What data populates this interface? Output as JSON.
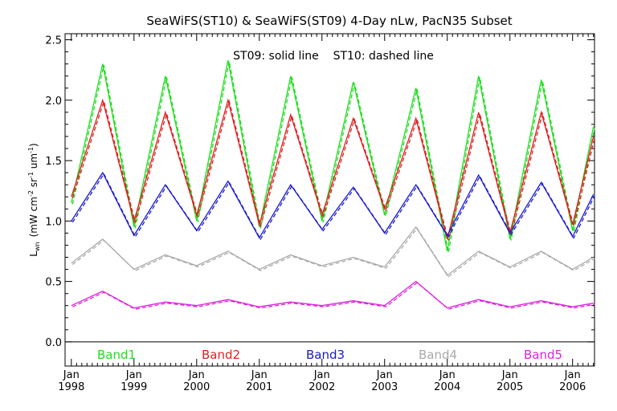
{
  "chart_data": {
    "type": "line",
    "title": "SeaWiFS(ST10) & SeaWiFS(ST09) 4-Day nLw, PacN35 Subset",
    "annotation": "ST09: solid line    ST10: dashed line",
    "ylabel_main": "L",
    "ylabel_sub": "wn",
    "ylabel_units": "(mW cm",
    "ylabel_units_exp1": "-2",
    "ylabel_units_mid": " sr",
    "ylabel_units_exp2": "-1",
    "ylabel_units_end": " um",
    "ylabel_units_exp3": "-1",
    "ylabel_units_close": ")",
    "ylim": [
      -0.2,
      2.55
    ],
    "xlim": [
      1997.9,
      2006.35
    ],
    "y_ticks": [
      "0.0",
      "0.5",
      "1.0",
      "1.5",
      "2.0",
      "2.5"
    ],
    "x_tick_month": "Jan",
    "x_tick_years": [
      "1998",
      "1999",
      "2000",
      "2001",
      "2002",
      "2003",
      "2004",
      "2005",
      "2006"
    ],
    "zero_line": 0.0,
    "legend_placement": "bottom, inside plot",
    "series": [
      {
        "name": "Band1",
        "color": "#22dd22",
        "dates": [
          "1998-01",
          "1998-07",
          "1999-01",
          "1999-07",
          "2000-01",
          "2000-07",
          "2001-01",
          "2001-07",
          "2002-01",
          "2002-07",
          "2003-01",
          "2003-07",
          "2004-01",
          "2004-07",
          "2005-01",
          "2005-07",
          "2006-01",
          "2006-05"
        ],
        "values": [
          1.15,
          2.3,
          0.95,
          2.2,
          1.0,
          2.33,
          0.95,
          2.2,
          1.0,
          2.15,
          1.05,
          2.1,
          0.75,
          2.2,
          0.85,
          2.17,
          0.92,
          1.78
        ]
      },
      {
        "name": "Band2",
        "color": "#dd2222",
        "dates": [
          "1998-01",
          "1998-07",
          "1999-01",
          "1999-07",
          "2000-01",
          "2000-07",
          "2001-01",
          "2001-07",
          "2002-01",
          "2002-07",
          "2003-01",
          "2003-07",
          "2004-01",
          "2004-07",
          "2005-01",
          "2005-07",
          "2006-01",
          "2006-05"
        ],
        "values": [
          1.2,
          2.0,
          1.0,
          1.9,
          1.05,
          2.0,
          0.97,
          1.88,
          1.05,
          1.85,
          1.1,
          1.85,
          0.85,
          1.9,
          0.9,
          1.9,
          0.97,
          1.7
        ]
      },
      {
        "name": "Band3",
        "color": "#1a1acc",
        "dates": [
          "1998-01",
          "1998-07",
          "1999-01",
          "1999-07",
          "2000-01",
          "2000-07",
          "2001-01",
          "2001-07",
          "2002-01",
          "2002-07",
          "2003-01",
          "2003-07",
          "2004-01",
          "2004-07",
          "2005-01",
          "2005-07",
          "2006-01",
          "2006-05"
        ],
        "values": [
          1.0,
          1.4,
          0.88,
          1.3,
          0.92,
          1.33,
          0.86,
          1.3,
          0.93,
          1.28,
          0.9,
          1.3,
          0.88,
          1.38,
          0.9,
          1.32,
          0.87,
          1.22
        ]
      },
      {
        "name": "Band4",
        "color": "#aaaaaa",
        "dates": [
          "1998-01",
          "1998-07",
          "1999-01",
          "1999-07",
          "2000-01",
          "2000-07",
          "2001-01",
          "2001-07",
          "2002-01",
          "2002-07",
          "2003-01",
          "2003-07",
          "2004-01",
          "2004-07",
          "2005-01",
          "2005-07",
          "2006-01",
          "2006-05"
        ],
        "values": [
          0.65,
          0.85,
          0.6,
          0.72,
          0.63,
          0.75,
          0.6,
          0.72,
          0.63,
          0.7,
          0.62,
          0.95,
          0.55,
          0.75,
          0.62,
          0.75,
          0.6,
          0.7
        ]
      },
      {
        "name": "Band5",
        "color": "#dd22dd",
        "dates": [
          "1998-01",
          "1998-07",
          "1999-01",
          "1999-07",
          "2000-01",
          "2000-07",
          "2001-01",
          "2001-07",
          "2002-01",
          "2002-07",
          "2003-01",
          "2003-07",
          "2004-01",
          "2004-07",
          "2005-01",
          "2005-07",
          "2006-01",
          "2006-05"
        ],
        "values": [
          0.3,
          0.42,
          0.28,
          0.33,
          0.3,
          0.35,
          0.29,
          0.33,
          0.3,
          0.34,
          0.3,
          0.5,
          0.28,
          0.35,
          0.29,
          0.34,
          0.29,
          0.32
        ]
      }
    ]
  }
}
